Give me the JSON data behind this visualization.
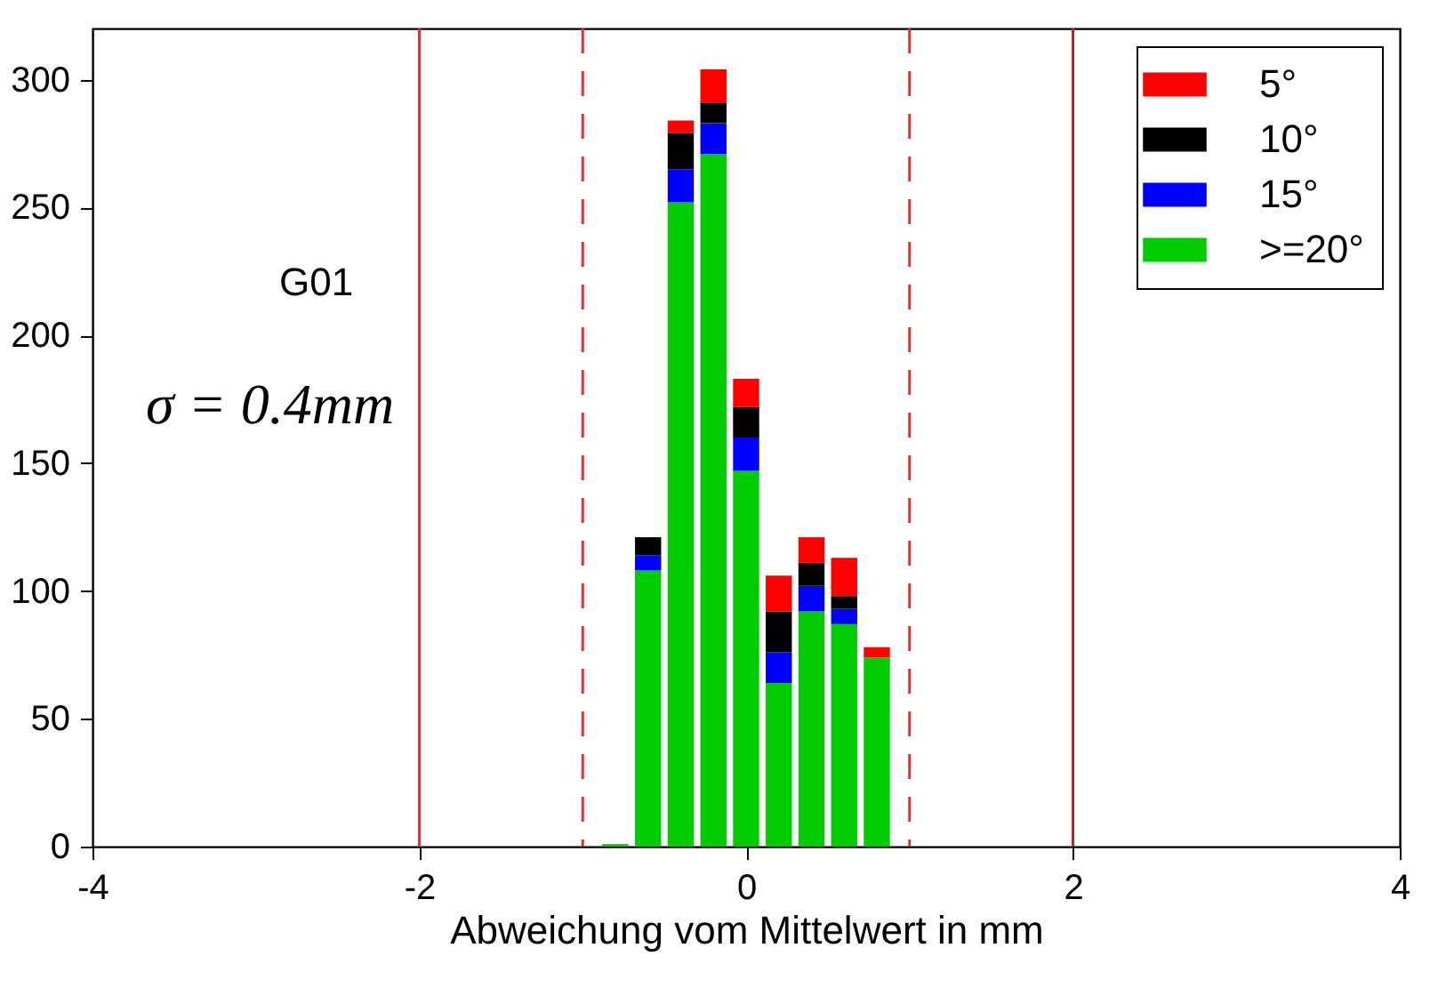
{
  "chart_data": {
    "type": "bar",
    "stacked": true,
    "xlabel": "Abweichung vom Mittelwert in mm",
    "x": [
      -0.8,
      -0.6,
      -0.4,
      -0.2,
      0,
      0.2,
      0.4,
      0.6,
      0.8
    ],
    "series": [
      {
        "name": ">=20°",
        "color": "#00cc00",
        "values": [
          1,
          108,
          252,
          271,
          147,
          64,
          92,
          87,
          74
        ]
      },
      {
        "name": "15°",
        "color": "#0000ff",
        "values": [
          0,
          6,
          13,
          12,
          13,
          12,
          10,
          6,
          0
        ]
      },
      {
        "name": "10°",
        "color": "#000000",
        "values": [
          0,
          7,
          14,
          8,
          12,
          16,
          9,
          5,
          0
        ]
      },
      {
        "name": "5°",
        "color": "#ff0000",
        "values": [
          0,
          0,
          5,
          13,
          11,
          14,
          10,
          15,
          4
        ]
      }
    ],
    "xlim": [
      -4,
      4
    ],
    "xticks": [
      -4,
      -2,
      0,
      2,
      4
    ],
    "ylim": [
      0,
      320
    ],
    "yticks": [
      0,
      50,
      100,
      150,
      200,
      250,
      300
    ],
    "ref_lines": [
      {
        "axis": "x",
        "value": -2,
        "color": "#e03030",
        "line_style": "solid"
      },
      {
        "axis": "x",
        "value": 2,
        "color": "#c02020",
        "line_style": "solid"
      },
      {
        "axis": "x",
        "value": -1,
        "color": "#e03030",
        "line_style": "dashed"
      },
      {
        "axis": "x",
        "value": 1,
        "color": "#e03030",
        "line_style": "dashed"
      }
    ],
    "annotations": [
      "G01",
      "σ = 0.4mm"
    ],
    "legend": "top right",
    "grid": false
  }
}
